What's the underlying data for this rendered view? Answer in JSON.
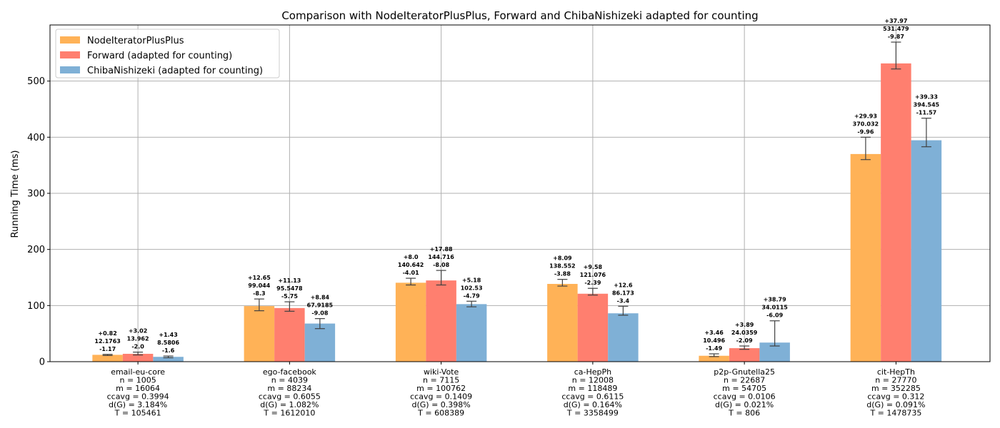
{
  "chart_data": {
    "type": "bar",
    "title": "Comparison with NodeIteratorPlusPlus, Forward and ChibaNishizeki adapted for counting",
    "xlabel": "",
    "ylabel": "Running Time (ms)",
    "ylim": [
      0,
      600
    ],
    "yticks": [
      0,
      100,
      200,
      300,
      400,
      500
    ],
    "grid": true,
    "legend_position": "top-left",
    "categories": [
      "email-eu-core",
      "ego-facebook",
      "wiki-Vote",
      "ca-HepPh",
      "p2p-Gnutella25",
      "cit-HepTh"
    ],
    "category_details": [
      [
        "email-eu-core",
        "n = 1005",
        "m = 16064",
        "ccavg = 0.3994",
        "d(G) = 3.184%",
        "T = 105461"
      ],
      [
        "ego-facebook",
        "n = 4039",
        "m = 88234",
        "ccavg = 0.6055",
        "d(G) = 1.082%",
        "T = 1612010"
      ],
      [
        "wiki-Vote",
        "n = 7115",
        "m = 100762",
        "ccavg = 0.1409",
        "d(G) = 0.398%",
        "T = 608389"
      ],
      [
        "ca-HepPh",
        "n = 12008",
        "m = 118489",
        "ccavg = 0.6115",
        "d(G) = 0.164%",
        "T = 3358499"
      ],
      [
        "p2p-Gnutella25",
        "n = 22687",
        "m = 54705",
        "ccavg = 0.0106",
        "d(G) = 0.021%",
        "T = 806"
      ],
      [
        "cit-HepTh",
        "n = 27770",
        "m = 352285",
        "ccavg = 0.312",
        "d(G) = 0.091%",
        "T = 1478735"
      ]
    ],
    "series": [
      {
        "name": "NodeIteratorPlusPlus",
        "color": "#ffb257",
        "values": [
          12.1763,
          99.044,
          140.642,
          138.552,
          10.496,
          370.032
        ],
        "err_plus": [
          0.82,
          12.65,
          8.0,
          8.09,
          3.46,
          29.93
        ],
        "err_minus": [
          1.17,
          8.3,
          4.01,
          3.88,
          1.49,
          9.96
        ],
        "labels": [
          [
            "+0.82",
            "12.1763",
            "-1.17"
          ],
          [
            "+12.65",
            "99.044",
            "-8.3"
          ],
          [
            "+8.0",
            "140.642",
            "-4.01"
          ],
          [
            "+8.09",
            "138.552",
            "-3.88"
          ],
          [
            "+3.46",
            "10.496",
            "-1.49"
          ],
          [
            "+29.93",
            "370.032",
            "-9.96"
          ]
        ]
      },
      {
        "name": "Forward (adapted for counting)",
        "color": "#ff7f6f",
        "values": [
          13.962,
          95.5478,
          144.716,
          121.076,
          24.0359,
          531.479
        ],
        "err_plus": [
          3.02,
          11.13,
          17.88,
          9.58,
          3.89,
          37.97
        ],
        "err_minus": [
          2.0,
          5.75,
          8.08,
          2.39,
          2.09,
          9.87
        ],
        "labels": [
          [
            "+3.02",
            "13.962",
            "-2.0"
          ],
          [
            "+11.13",
            "95.5478",
            "-5.75"
          ],
          [
            "+17.88",
            "144.716",
            "-8.08"
          ],
          [
            "+9.58",
            "121.076",
            "-2.39"
          ],
          [
            "+3.89",
            "24.0359",
            "-2.09"
          ],
          [
            "+37.97",
            "531.479",
            "-9.87"
          ]
        ]
      },
      {
        "name": "ChibaNishizeki (adapted for counting)",
        "color": "#7fb0d6",
        "values": [
          8.5806,
          67.9185,
          102.53,
          86.173,
          34.0115,
          394.545
        ],
        "err_plus": [
          1.43,
          8.84,
          5.18,
          12.6,
          38.79,
          39.33
        ],
        "err_minus": [
          1.6,
          9.08,
          4.79,
          3.4,
          6.09,
          11.57
        ],
        "labels": [
          [
            "+1.43",
            "8.5806",
            "-1.6"
          ],
          [
            "+8.84",
            "67.9185",
            "-9.08"
          ],
          [
            "+5.18",
            "102.53",
            "-4.79"
          ],
          [
            "+12.6",
            "86.173",
            "-3.4"
          ],
          [
            "+38.79",
            "34.0115",
            "-6.09"
          ],
          [
            "+39.33",
            "394.545",
            "-11.57"
          ]
        ]
      }
    ]
  }
}
